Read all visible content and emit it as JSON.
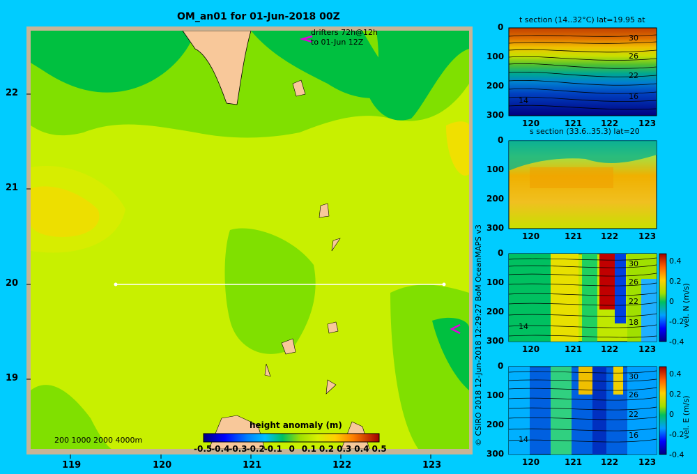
{
  "main": {
    "title": "OM_an01 for 01-Jun-2018 00Z",
    "drifters_line1": "drifters 72h@12h",
    "drifters_line2": "to 01-Jun 12Z",
    "depth_legend": "200  1000  2000  4000m",
    "colorbar_title": "height anomaly  (m)",
    "colorbar_ticks": [
      "-0.5",
      "-0.4",
      "-0.3",
      "-0.2",
      "-0.1",
      "0",
      "0.1",
      "0.2",
      "0.3",
      "0.4",
      "0.5"
    ],
    "x_ticks": [
      "119",
      "120",
      "121",
      "122",
      "123"
    ],
    "y_ticks": [
      "22",
      "21",
      "20",
      "19"
    ]
  },
  "credit": "© CSIRO 2018   12-Jun-2018 12:29:27 BoM OceanMAPS v3",
  "sections": [
    {
      "title": "t section (14..32°C) lat=19.95 at",
      "x_ticks": [
        "120",
        "121",
        "122",
        "123"
      ],
      "y_ticks": [
        "0",
        "100",
        "200",
        "300"
      ],
      "contour_labels": [
        "30",
        "26",
        "22",
        "16",
        "14"
      ]
    },
    {
      "title": "s section (33.6..35.3) lat=20",
      "x_ticks": [
        "120",
        "121",
        "122",
        "123"
      ],
      "y_ticks": [
        "0",
        "100",
        "200",
        "300"
      ],
      "contour_labels": []
    },
    {
      "title": "",
      "x_ticks": [
        "120",
        "121",
        "122",
        "123"
      ],
      "y_ticks": [
        "0",
        "100",
        "200",
        "300"
      ],
      "cbar_label": "vel. N  (m/s)",
      "cbar_ticks": [
        "0.4",
        "0.2",
        "0",
        "-0.2",
        "-0.4"
      ],
      "contour_labels": [
        "30",
        "26",
        "22",
        "18",
        "14"
      ]
    },
    {
      "title": "",
      "x_ticks": [
        "120",
        "121",
        "122",
        "123"
      ],
      "y_ticks": [
        "0",
        "100",
        "200",
        "300"
      ],
      "cbar_label": "vel. E  (m/s)",
      "cbar_ticks": [
        "0.4",
        "0.2",
        "0",
        "-0.2",
        "-0.4"
      ],
      "contour_labels": [
        "30",
        "26",
        "22",
        "16",
        "14"
      ]
    }
  ],
  "chart_data": [
    {
      "type": "heatmap",
      "title": "OM_an01 for 01-Jun-2018 00Z",
      "xlim": [
        118.5,
        123.5
      ],
      "ylim": [
        18.3,
        22.7
      ],
      "colorbar": "height anomaly  (m)",
      "clim": [
        -0.5,
        0.5
      ],
      "section_line": {
        "lat": 20,
        "lon": [
          119.5,
          123.2
        ]
      }
    },
    {
      "type": "heatmap",
      "title": "t section (14..32°C) lat=19.95 at",
      "xlim": [
        119.6,
        123.2
      ],
      "ylim": [
        300,
        0
      ]
    },
    {
      "type": "heatmap",
      "title": "s section (33.6..35.3) lat=20",
      "xlim": [
        119.6,
        123.2
      ],
      "ylim": [
        300,
        0
      ]
    },
    {
      "type": "heatmap",
      "colorbar": "vel. N  (m/s)",
      "clim": [
        -0.4,
        0.4
      ],
      "xlim": [
        119.6,
        123.2
      ],
      "ylim": [
        300,
        0
      ]
    },
    {
      "type": "heatmap",
      "colorbar": "vel. E  (m/s)",
      "clim": [
        -0.4,
        0.4
      ],
      "xlim": [
        119.6,
        123.2
      ],
      "ylim": [
        300,
        0
      ]
    }
  ]
}
